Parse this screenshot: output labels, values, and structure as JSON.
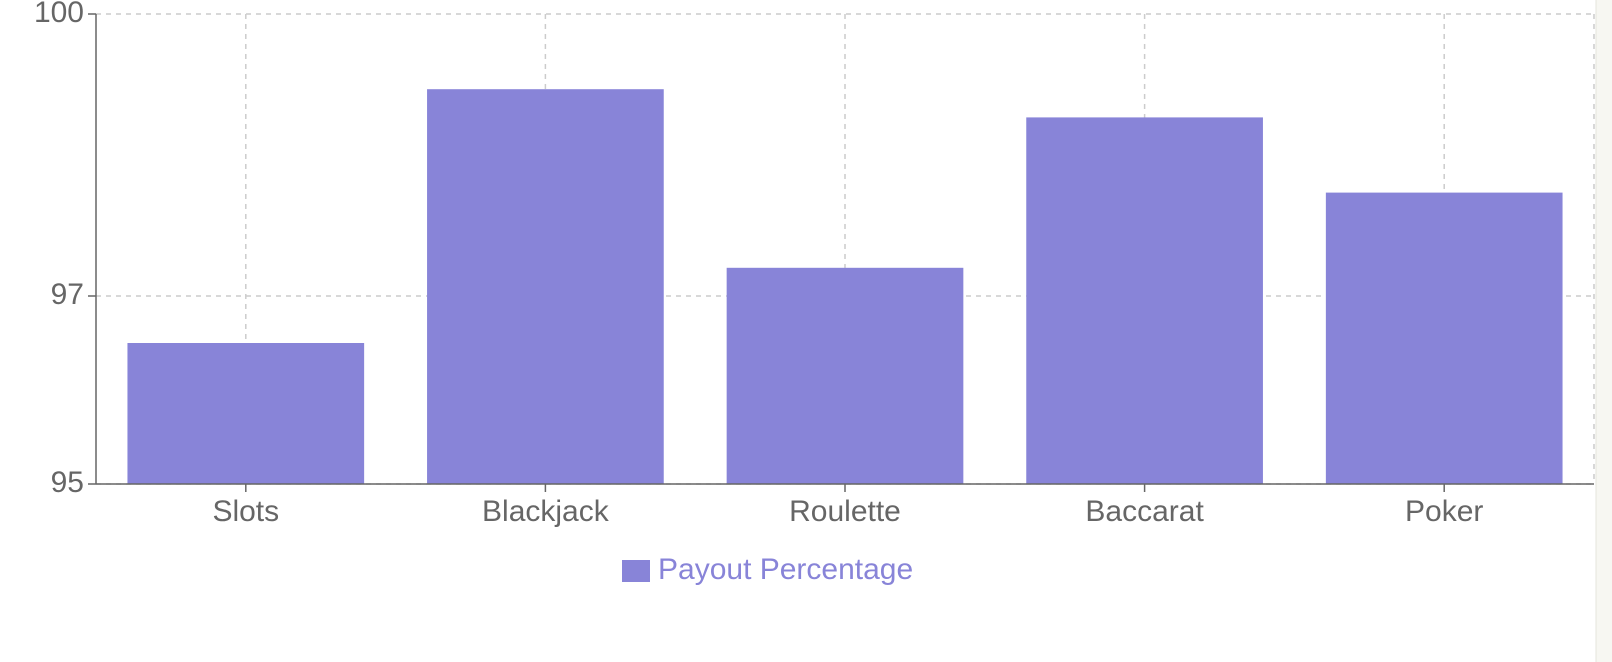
{
  "chart_data": {
    "type": "bar",
    "categories": [
      "Slots",
      "Blackjack",
      "Roulette",
      "Baccarat",
      "Poker"
    ],
    "series": [
      {
        "name": "Payout Percentage",
        "color": "#8884d8",
        "values": [
          96.5,
          99.2,
          97.3,
          98.9,
          98.1
        ]
      }
    ],
    "ylim": [
      95,
      100
    ],
    "yticks": [
      95,
      97,
      100
    ],
    "grid": true
  }
}
